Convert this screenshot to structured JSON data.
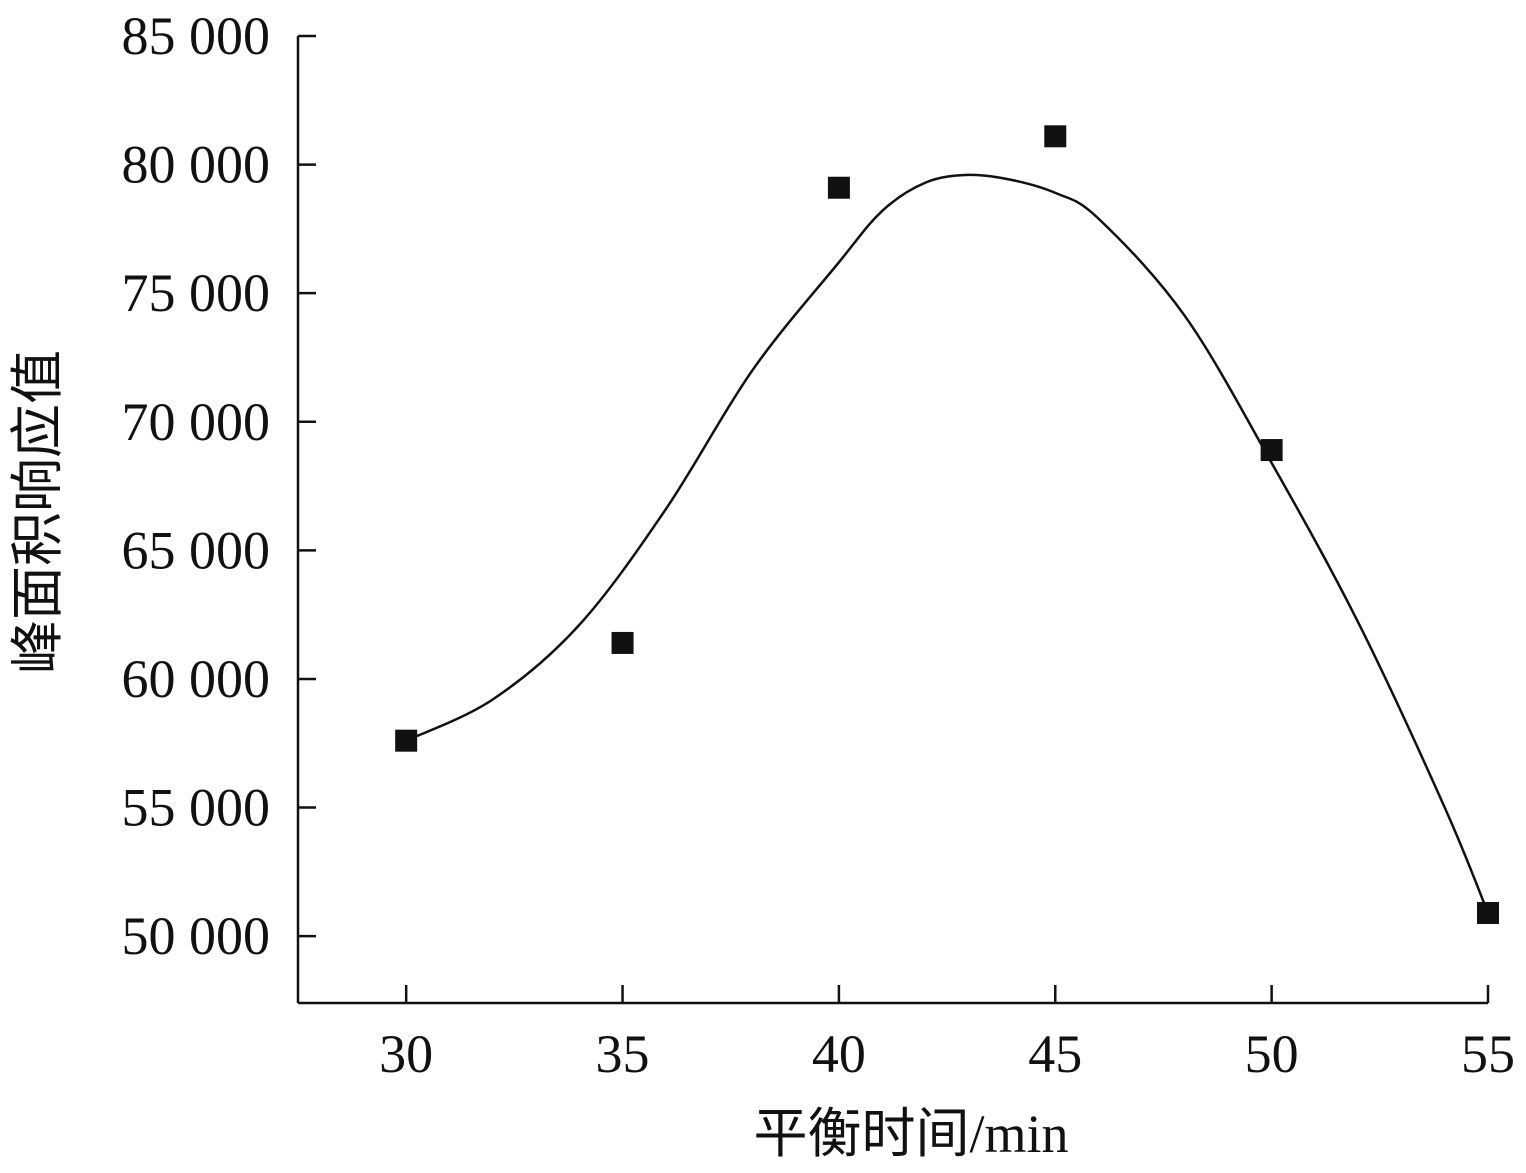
{
  "chart_data": {
    "type": "scatter",
    "xlabel": "平衡时间/min",
    "ylabel": "峰面积响应值",
    "x_ticks": [
      "30",
      "35",
      "40",
      "45",
      "50",
      "55"
    ],
    "y_ticks": [
      "50 000",
      "55 000",
      "60 000",
      "65 000",
      "70 000",
      "75 000",
      "80 000",
      "85 000"
    ],
    "xlim": [
      27.5,
      55
    ],
    "ylim": [
      47400,
      85000
    ],
    "series": [
      {
        "marker": "square",
        "color": "#111111",
        "x": [
          30,
          35,
          40,
          45,
          50,
          55
        ],
        "y": [
          57600,
          61400,
          79100,
          81100,
          68900,
          50900
        ]
      }
    ],
    "fit_curve": {
      "color": "#111111",
      "x": [
        30,
        32,
        34,
        36,
        38,
        40,
        41,
        42,
        43,
        44,
        45,
        46,
        48,
        50,
        52,
        54,
        55
      ],
      "y": [
        57600,
        59200,
        62100,
        66600,
        72000,
        76200,
        78200,
        79300,
        79600,
        79400,
        78900,
        77900,
        74100,
        68400,
        62200,
        55000,
        50900
      ]
    },
    "grid": false,
    "legend": "none"
  }
}
